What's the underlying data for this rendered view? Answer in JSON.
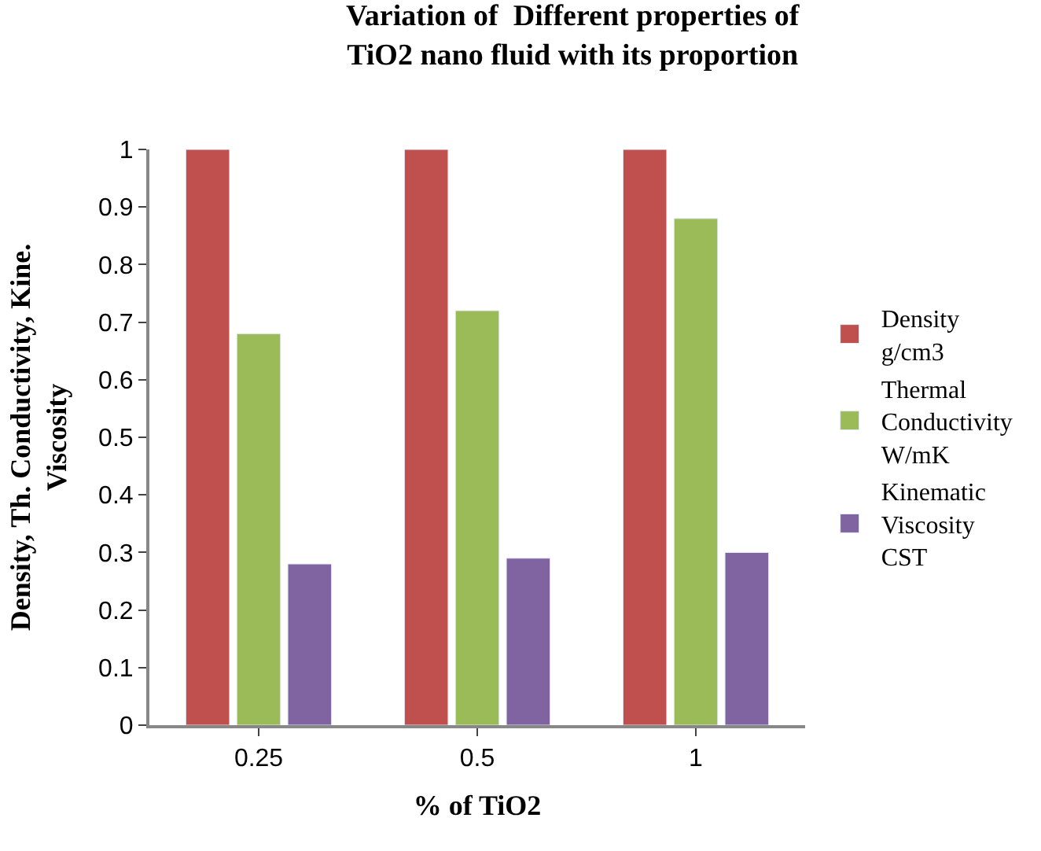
{
  "chart_data": {
    "type": "bar",
    "title": "Variation of  Different properties of  TiO2 nano fluid with its proportion",
    "xlabel": "% of TiO2",
    "ylabel": "Density, Th. Conductivity, Kine. Viscosity",
    "categories": [
      "0.25",
      "0.5",
      "1"
    ],
    "series": [
      {
        "name": "Density g/cm3",
        "color": "#c0504d",
        "values": [
          1,
          1,
          1
        ]
      },
      {
        "name": "Thermal Conductivity W/mK",
        "color": "#9bbb59",
        "values": [
          0.68,
          0.72,
          0.88
        ]
      },
      {
        "name": "Kinematic Viscosity CST",
        "color": "#8064a2",
        "values": [
          0.28,
          0.29,
          0.3
        ]
      }
    ],
    "ylim": [
      0,
      1
    ],
    "yticks": [
      0,
      0.1,
      0.2,
      0.3,
      0.4,
      0.5,
      0.6,
      0.7,
      0.8,
      0.9,
      1
    ],
    "legend": "right"
  }
}
